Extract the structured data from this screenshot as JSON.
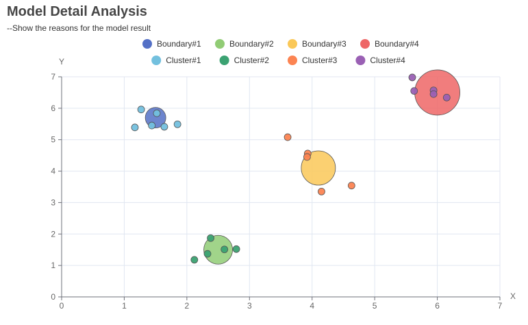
{
  "title": "Model Detail Analysis",
  "subtitle": "--Show the reasons for the model result",
  "chart_data": {
    "type": "scatter",
    "xlabel": "X",
    "ylabel": "Y",
    "xlim": [
      0,
      7
    ],
    "ylim": [
      0,
      7
    ],
    "xticks": [
      0,
      1,
      2,
      3,
      4,
      5,
      6,
      7
    ],
    "yticks": [
      0,
      1,
      2,
      3,
      4,
      5,
      6,
      7
    ],
    "grid": true,
    "legend_position": "top-center",
    "series": [
      {
        "name": "Boundary#1",
        "color": "#5470c6",
        "kind": "boundary",
        "points": [
          {
            "x": 1.5,
            "y": 5.7,
            "r": 15
          }
        ]
      },
      {
        "name": "Boundary#2",
        "color": "#91cc75",
        "kind": "boundary",
        "points": [
          {
            "x": 2.5,
            "y": 1.5,
            "r": 21
          }
        ]
      },
      {
        "name": "Boundary#3",
        "color": "#fac858",
        "kind": "boundary",
        "points": [
          {
            "x": 4.1,
            "y": 4.1,
            "r": 25
          }
        ]
      },
      {
        "name": "Boundary#4",
        "color": "#ee6666",
        "kind": "boundary",
        "points": [
          {
            "x": 6.0,
            "y": 6.5,
            "r": 33
          }
        ]
      },
      {
        "name": "Cluster#1",
        "color": "#73c0de",
        "kind": "cluster",
        "points": [
          {
            "x": 1.27,
            "y": 5.96
          },
          {
            "x": 1.52,
            "y": 5.84
          },
          {
            "x": 1.17,
            "y": 5.39
          },
          {
            "x": 1.44,
            "y": 5.45
          },
          {
            "x": 1.64,
            "y": 5.41
          },
          {
            "x": 1.85,
            "y": 5.49
          }
        ]
      },
      {
        "name": "Cluster#2",
        "color": "#3ba272",
        "kind": "cluster",
        "points": [
          {
            "x": 2.38,
            "y": 1.87
          },
          {
            "x": 2.6,
            "y": 1.51
          },
          {
            "x": 2.79,
            "y": 1.52
          },
          {
            "x": 2.33,
            "y": 1.37
          },
          {
            "x": 2.12,
            "y": 1.18
          }
        ]
      },
      {
        "name": "Cluster#3",
        "color": "#fc8452",
        "kind": "cluster",
        "points": [
          {
            "x": 3.61,
            "y": 5.08
          },
          {
            "x": 3.93,
            "y": 4.56
          },
          {
            "x": 3.92,
            "y": 4.45
          },
          {
            "x": 4.63,
            "y": 3.54
          },
          {
            "x": 4.15,
            "y": 3.35
          }
        ]
      },
      {
        "name": "Cluster#4",
        "color": "#9a60b4",
        "kind": "cluster",
        "points": [
          {
            "x": 5.6,
            "y": 6.98
          },
          {
            "x": 5.63,
            "y": 6.55
          },
          {
            "x": 5.94,
            "y": 6.57
          },
          {
            "x": 5.94,
            "y": 6.45
          },
          {
            "x": 6.15,
            "y": 6.34
          }
        ]
      }
    ]
  }
}
